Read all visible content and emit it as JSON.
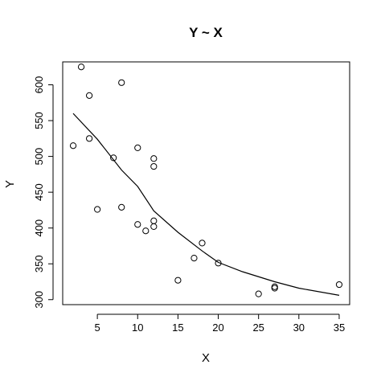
{
  "chart_data": {
    "type": "scatter",
    "title": "Y ~ X",
    "xlabel": "X",
    "ylabel": "Y",
    "xlim": [
      0.7,
      36.3
    ],
    "ylim": [
      293,
      632
    ],
    "x_ticks": [
      5,
      10,
      15,
      20,
      25,
      30,
      35
    ],
    "y_ticks": [
      300,
      350,
      400,
      450,
      500,
      550,
      600
    ],
    "grid": false,
    "legend": "none",
    "points": [
      {
        "x": 2,
        "y": 515
      },
      {
        "x": 3,
        "y": 625
      },
      {
        "x": 4,
        "y": 585
      },
      {
        "x": 4,
        "y": 525
      },
      {
        "x": 5,
        "y": 426
      },
      {
        "x": 7,
        "y": 498
      },
      {
        "x": 8,
        "y": 603
      },
      {
        "x": 8,
        "y": 429
      },
      {
        "x": 10,
        "y": 512
      },
      {
        "x": 10,
        "y": 405
      },
      {
        "x": 11,
        "y": 396
      },
      {
        "x": 12,
        "y": 497
      },
      {
        "x": 12,
        "y": 486
      },
      {
        "x": 12,
        "y": 410
      },
      {
        "x": 12,
        "y": 402
      },
      {
        "x": 15,
        "y": 327
      },
      {
        "x": 17,
        "y": 358
      },
      {
        "x": 18,
        "y": 379
      },
      {
        "x": 20,
        "y": 351
      },
      {
        "x": 25,
        "y": 308
      },
      {
        "x": 27,
        "y": 318
      },
      {
        "x": 27,
        "y": 316
      },
      {
        "x": 35,
        "y": 321
      }
    ],
    "smooth_line": [
      {
        "x": 2,
        "y": 560
      },
      {
        "x": 5,
        "y": 524
      },
      {
        "x": 8,
        "y": 481
      },
      {
        "x": 10,
        "y": 458
      },
      {
        "x": 12,
        "y": 424
      },
      {
        "x": 15,
        "y": 394
      },
      {
        "x": 18,
        "y": 368
      },
      {
        "x": 20,
        "y": 352
      },
      {
        "x": 23,
        "y": 339
      },
      {
        "x": 27,
        "y": 325
      },
      {
        "x": 30,
        "y": 316
      },
      {
        "x": 35,
        "y": 306
      }
    ]
  }
}
